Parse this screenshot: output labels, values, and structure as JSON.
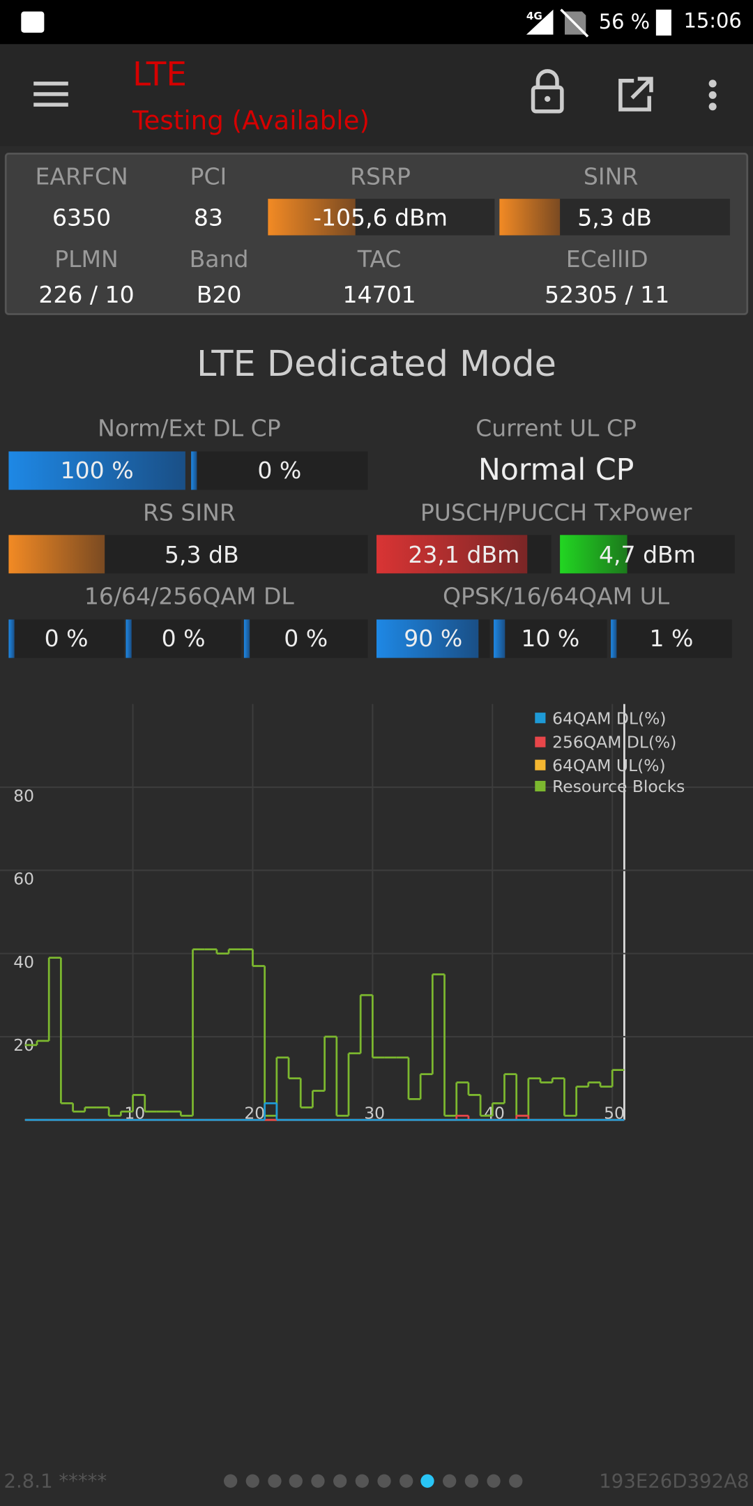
{
  "status_bar": {
    "network": "4G",
    "battery": "56 %",
    "time": "15:06"
  },
  "toolbar": {
    "title": "LTE",
    "subtitle": "Testing (Available)"
  },
  "cell_info": [
    {
      "label": "EARFCN",
      "value": "6350"
    },
    {
      "label": "PCI",
      "value": "83"
    },
    {
      "label": "RSRP",
      "value": "-105,6 dBm"
    },
    {
      "label": "SINR",
      "value": "5,3 dB"
    },
    {
      "label": "PLMN",
      "value": "226 / 10"
    },
    {
      "label": "Band",
      "value": "B20"
    },
    {
      "label": "TAC",
      "value": "14701"
    },
    {
      "label": "ECellID",
      "value": "52305 / 11"
    }
  ],
  "section_title": "LTE Dedicated Mode",
  "metrics": {
    "cp_dl": {
      "label": "Norm/Ext DL CP",
      "values": [
        {
          "value": 100,
          "label": "100 %"
        },
        {
          "value": 0,
          "label": "0 %"
        }
      ]
    },
    "cp_ul": {
      "label": "Current UL CP",
      "value": "Normal CP"
    },
    "rs_sinr": {
      "label": "RS SINR",
      "value": "5,3 dB"
    },
    "tx_power": {
      "label": "PUSCH/PUCCH TxPower",
      "values": [
        "23,1 dBm",
        "4,7 dBm"
      ]
    },
    "qam_dl": {
      "label": "16/64/256QAM DL",
      "values": [
        {
          "value": 0,
          "label": "0 %"
        },
        {
          "value": 0,
          "label": "0 %"
        },
        {
          "value": 0,
          "label": "0 %"
        }
      ]
    },
    "qam_ul": {
      "label": "QPSK/16/64QAM UL",
      "values": [
        {
          "value": 90,
          "label": "90 %"
        },
        {
          "value": 10,
          "label": "10 %"
        },
        {
          "value": 1,
          "label": "1 %"
        }
      ]
    }
  },
  "chart_data": {
    "type": "step",
    "x": [
      1,
      2,
      3,
      4,
      5,
      6,
      7,
      8,
      9,
      10,
      11,
      12,
      13,
      14,
      15,
      16,
      17,
      18,
      19,
      20,
      21,
      22,
      23,
      24,
      25,
      26,
      27,
      28,
      29,
      30,
      31,
      32,
      33,
      34,
      35,
      36,
      37,
      38,
      39,
      40,
      41,
      42,
      43,
      44,
      45,
      46,
      47,
      48,
      49,
      50
    ],
    "series": [
      {
        "name": "64QAM DL(%)",
        "color": "#1e9ad6",
        "values": [
          0,
          0,
          0,
          0,
          0,
          0,
          0,
          0,
          0,
          0,
          0,
          0,
          0,
          0,
          0,
          0,
          0,
          0,
          0,
          0,
          4,
          0,
          0,
          0,
          0,
          0,
          0,
          0,
          0,
          0,
          0,
          0,
          0,
          0,
          0,
          0,
          0,
          0,
          0,
          0,
          0,
          0,
          0,
          0,
          0,
          0,
          0,
          0,
          0,
          0
        ]
      },
      {
        "name": "256QAM DL(%)",
        "color": "#e8464a",
        "values": [
          0,
          0,
          0,
          0,
          0,
          0,
          0,
          0,
          0,
          0,
          0,
          0,
          0,
          0,
          0,
          0,
          0,
          0,
          0,
          0,
          0,
          0,
          0,
          0,
          0,
          0,
          0,
          0,
          0,
          0,
          0,
          0,
          0,
          0,
          0,
          0,
          1,
          0,
          0,
          0,
          0,
          1,
          0,
          0,
          0,
          0,
          0,
          0,
          0,
          0
        ]
      },
      {
        "name": "64QAM UL(%)",
        "color": "#f5b731",
        "values": [
          0,
          0,
          0,
          0,
          0,
          0,
          0,
          0,
          0,
          0,
          0,
          0,
          0,
          0,
          0,
          0,
          0,
          0,
          0,
          0,
          0,
          0,
          0,
          0,
          0,
          0,
          0,
          0,
          0,
          0,
          0,
          0,
          0,
          0,
          0,
          0,
          0,
          0,
          0,
          0,
          0,
          0,
          0,
          0,
          0,
          0,
          0,
          0,
          0,
          0
        ]
      },
      {
        "name": "Resource Blocks",
        "color": "#7cb82f",
        "values": [
          18,
          19,
          39,
          4,
          2,
          3,
          3,
          1,
          2,
          6,
          2,
          2,
          2,
          1,
          41,
          41,
          40,
          41,
          41,
          37,
          1,
          15,
          10,
          3,
          7,
          20,
          1,
          16,
          30,
          15,
          15,
          15,
          5,
          11,
          35,
          1,
          9,
          6,
          1,
          4,
          11,
          1,
          10,
          9,
          10,
          1,
          8,
          9,
          8,
          12
        ]
      }
    ],
    "xlim": [
      1,
      51
    ],
    "ylim": [
      0,
      100
    ],
    "xticks": [
      10,
      20,
      30,
      40,
      50
    ],
    "yticks": [
      20,
      40,
      60,
      80
    ],
    "grid": true,
    "legend": "top-right"
  },
  "footer": {
    "version": "2.8.1 *****",
    "device_id": "193E26D392A8"
  }
}
